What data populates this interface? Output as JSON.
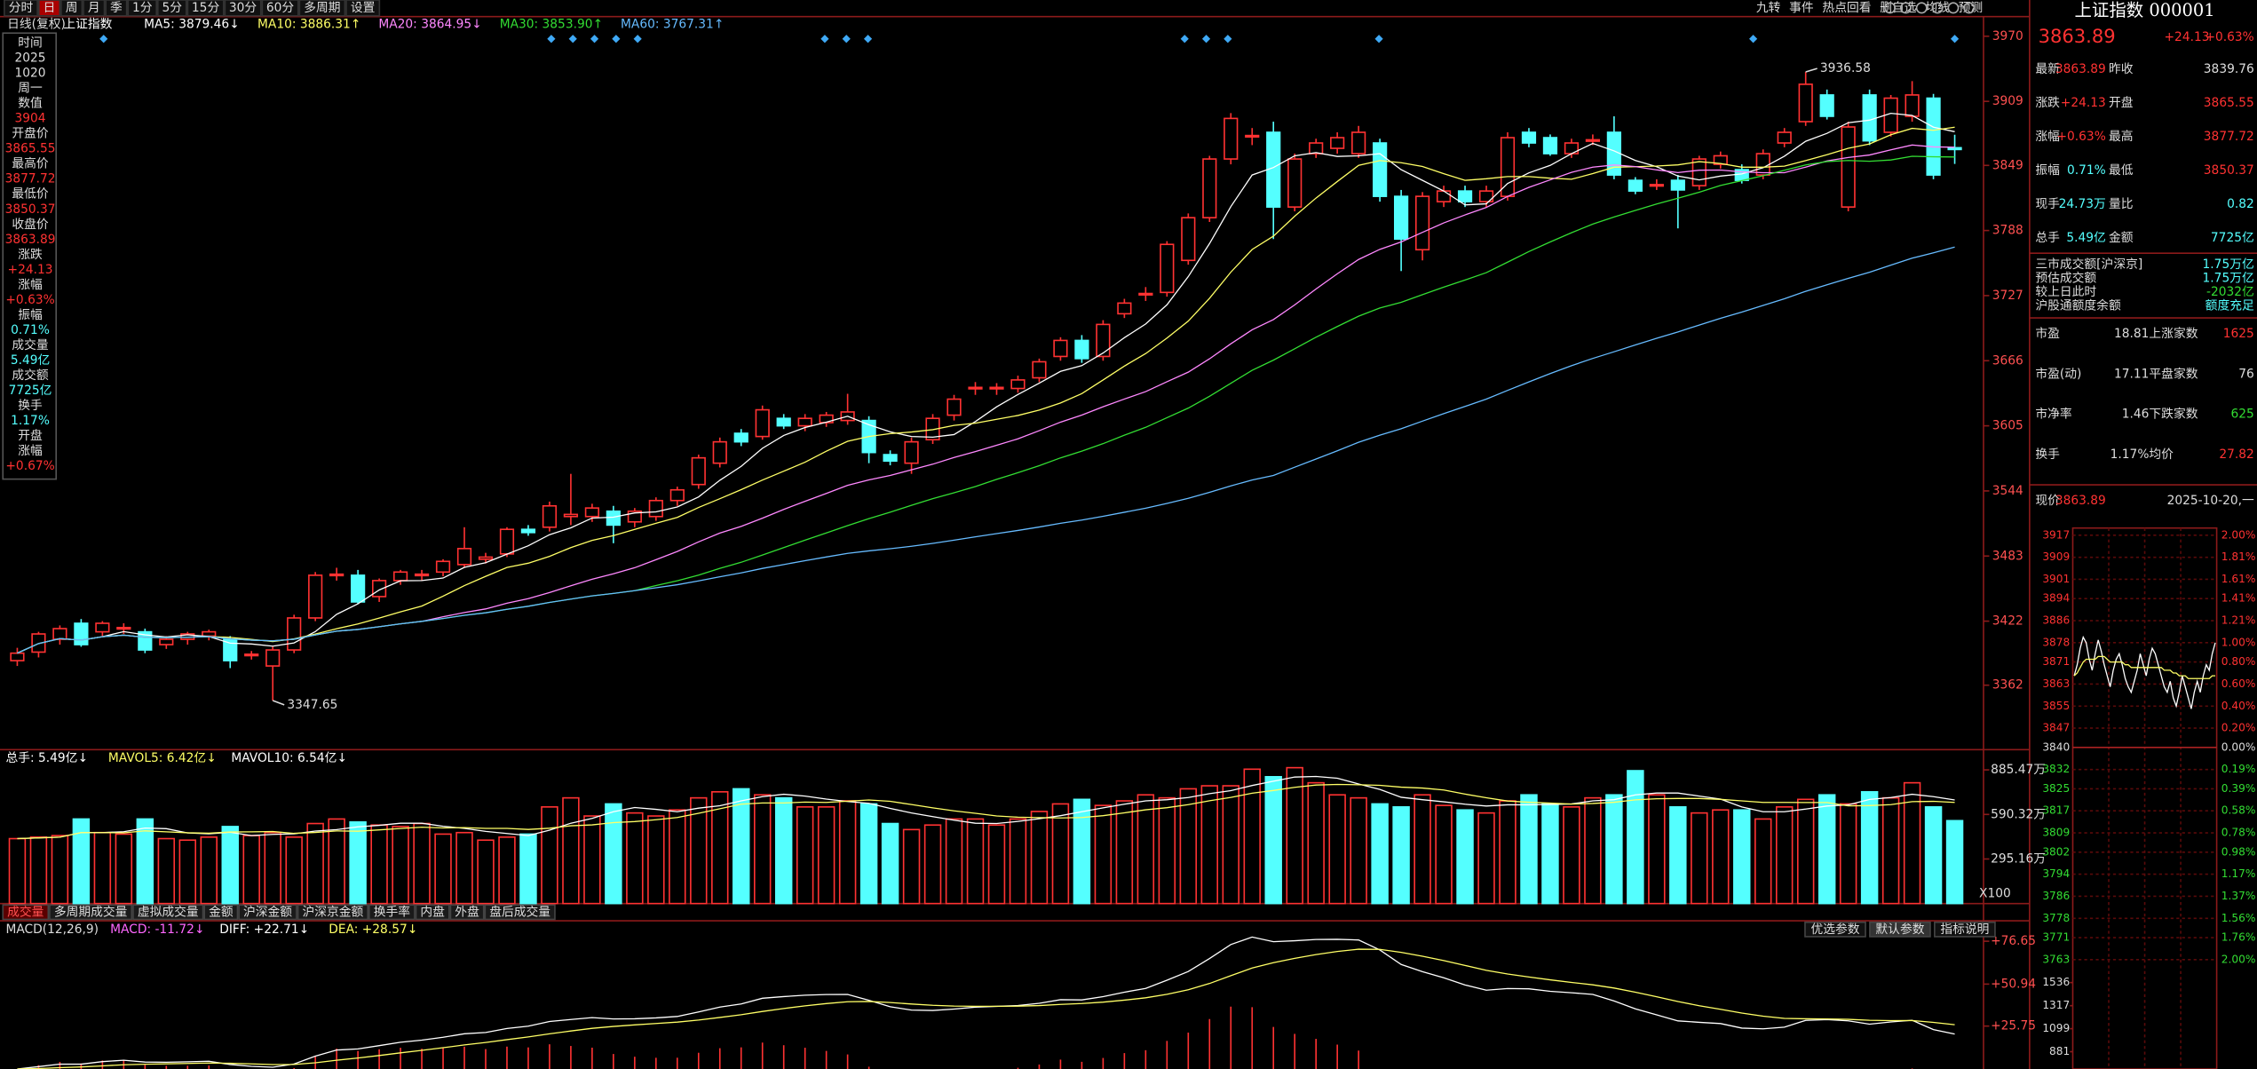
{
  "toolbar": {
    "left": [
      "分时",
      "日",
      "周",
      "月",
      "季",
      "1分",
      "5分",
      "15分",
      "30分",
      "60分",
      "多周期",
      "设置"
    ],
    "active": 1,
    "right": [
      "九转",
      "事件",
      "热点回看",
      "删自选",
      "均线",
      "预测"
    ]
  },
  "kline": {
    "label": "日线(复权)",
    "name": "上证指数",
    "ma": [
      {
        "period": 5,
        "text": "MA5: 3879.46↓",
        "color": "#ffffff"
      },
      {
        "period": 10,
        "text": "MA10: 3886.31↑",
        "color": "#ffff66"
      },
      {
        "period": 20,
        "text": "MA20: 3864.95↓",
        "color": "#ff88ff"
      },
      {
        "period": 30,
        "text": "MA30: 3853.90↑",
        "color": "#33dd33"
      },
      {
        "period": 60,
        "text": "MA60: 3767.31↑",
        "color": "#66bbff"
      }
    ],
    "ylim": [
      3303,
      3977
    ],
    "yticks": [
      3970,
      3909,
      3849,
      3788,
      3727,
      3666,
      3605,
      3544,
      3483,
      3422,
      3362
    ],
    "low": {
      "index": 12,
      "label": "3347.65"
    },
    "high": {
      "index": 84,
      "label": "3936.58"
    },
    "up_color": "#ff3232",
    "down_color": "#54ffff",
    "candles": [
      [
        3385,
        3397,
        3380,
        3392
      ],
      [
        3393,
        3412,
        3388,
        3410
      ],
      [
        3405,
        3418,
        3400,
        3415
      ],
      [
        3420,
        3424,
        3398,
        3400
      ],
      [
        3412,
        3422,
        3408,
        3420
      ],
      [
        3415,
        3420,
        3410,
        3416
      ],
      [
        3412,
        3415,
        3392,
        3395
      ],
      [
        3400,
        3408,
        3396,
        3405
      ],
      [
        3405,
        3412,
        3400,
        3410
      ],
      [
        3408,
        3414,
        3404,
        3412
      ],
      [
        3405,
        3408,
        3378,
        3385
      ],
      [
        3390,
        3394,
        3386,
        3391
      ],
      [
        3380,
        3398,
        3347.65,
        3395
      ],
      [
        3395,
        3428,
        3392,
        3425
      ],
      [
        3425,
        3468,
        3422,
        3465
      ],
      [
        3465,
        3472,
        3460,
        3466
      ],
      [
        3465,
        3470,
        3438,
        3440
      ],
      [
        3445,
        3462,
        3440,
        3460
      ],
      [
        3460,
        3470,
        3456,
        3468
      ],
      [
        3465,
        3470,
        3460,
        3466
      ],
      [
        3468,
        3480,
        3464,
        3478
      ],
      [
        3475,
        3510,
        3472,
        3490
      ],
      [
        3480,
        3486,
        3476,
        3482
      ],
      [
        3485,
        3510,
        3482,
        3508
      ],
      [
        3508,
        3512,
        3502,
        3505
      ],
      [
        3510,
        3534,
        3506,
        3530
      ],
      [
        3520,
        3560,
        3512,
        3522
      ],
      [
        3520,
        3532,
        3515,
        3528
      ],
      [
        3525,
        3530,
        3495,
        3512
      ],
      [
        3515,
        3528,
        3510,
        3525
      ],
      [
        3520,
        3538,
        3516,
        3535
      ],
      [
        3535,
        3548,
        3530,
        3545
      ],
      [
        3550,
        3578,
        3546,
        3575
      ],
      [
        3570,
        3594,
        3566,
        3590
      ],
      [
        3598,
        3602,
        3586,
        3590
      ],
      [
        3595,
        3624,
        3592,
        3620
      ],
      [
        3612,
        3616,
        3602,
        3605
      ],
      [
        3605,
        3616,
        3600,
        3612
      ],
      [
        3608,
        3618,
        3604,
        3615
      ],
      [
        3610,
        3635,
        3606,
        3618
      ],
      [
        3610,
        3614,
        3570,
        3580
      ],
      [
        3578,
        3582,
        3568,
        3572
      ],
      [
        3570,
        3594,
        3560,
        3590
      ],
      [
        3592,
        3616,
        3588,
        3612
      ],
      [
        3615,
        3634,
        3610,
        3630
      ],
      [
        3640,
        3646,
        3634,
        3641
      ],
      [
        3640,
        3645,
        3634,
        3641
      ],
      [
        3640,
        3652,
        3636,
        3648
      ],
      [
        3650,
        3668,
        3646,
        3665
      ],
      [
        3670,
        3688,
        3666,
        3685
      ],
      [
        3685,
        3690,
        3664,
        3668
      ],
      [
        3670,
        3704,
        3666,
        3700
      ],
      [
        3710,
        3724,
        3706,
        3720
      ],
      [
        3728,
        3735,
        3722,
        3729
      ],
      [
        3730,
        3778,
        3726,
        3775
      ],
      [
        3760,
        3804,
        3756,
        3800
      ],
      [
        3800,
        3858,
        3796,
        3855
      ],
      [
        3855,
        3898,
        3850,
        3893
      ],
      [
        3876,
        3884,
        3868,
        3877
      ],
      [
        3880,
        3890,
        3780,
        3810
      ],
      [
        3810,
        3860,
        3806,
        3855
      ],
      [
        3860,
        3874,
        3856,
        3870
      ],
      [
        3865,
        3880,
        3860,
        3875
      ],
      [
        3860,
        3886,
        3856,
        3880
      ],
      [
        3870,
        3874,
        3815,
        3820
      ],
      [
        3820,
        3826,
        3750,
        3780
      ],
      [
        3770,
        3824,
        3760,
        3820
      ],
      [
        3815,
        3830,
        3810,
        3825
      ],
      [
        3825,
        3830,
        3810,
        3815
      ],
      [
        3815,
        3830,
        3810,
        3825
      ],
      [
        3820,
        3880,
        3816,
        3875
      ],
      [
        3880,
        3884,
        3866,
        3870
      ],
      [
        3875,
        3878,
        3858,
        3860
      ],
      [
        3860,
        3874,
        3856,
        3870
      ],
      [
        3872,
        3878,
        3868,
        3873
      ],
      [
        3880,
        3895,
        3836,
        3840
      ],
      [
        3835,
        3838,
        3822,
        3825
      ],
      [
        3830,
        3836,
        3826,
        3831
      ],
      [
        3835,
        3840,
        3790,
        3826
      ],
      [
        3830,
        3858,
        3826,
        3855
      ],
      [
        3850,
        3862,
        3846,
        3858
      ],
      [
        3845,
        3850,
        3832,
        3835
      ],
      [
        3840,
        3864,
        3836,
        3860
      ],
      [
        3870,
        3884,
        3866,
        3880
      ],
      [
        3890,
        3936.58,
        3886,
        3925
      ],
      [
        3915,
        3920,
        3892,
        3895
      ],
      [
        3810,
        3890,
        3806,
        3885
      ],
      [
        3915,
        3920,
        3868,
        3872
      ],
      [
        3880,
        3915,
        3876,
        3912
      ],
      [
        3895,
        3928,
        3890,
        3915
      ],
      [
        3912,
        3916,
        3836,
        3840
      ],
      [
        3865.55,
        3877.72,
        3850.37,
        3863.89
      ]
    ]
  },
  "volume": {
    "legend": [
      "总手: 5.49亿↓",
      "MAVOL5: 6.42亿↓",
      "MAVOL10: 6.54亿↓"
    ],
    "legend_colors": [
      "#ffffff",
      "#ffff66",
      "#ffffff"
    ],
    "ma": [
      {
        "period": 5,
        "color": "#ffffff"
      },
      {
        "period": 10,
        "color": "#ffff66"
      }
    ],
    "ylim": [
      0,
      934
    ],
    "yticks": [
      {
        "value": 885.47,
        "label": "885.47万"
      },
      {
        "value": 590.32,
        "label": "590.32万"
      },
      {
        "value": 295.16,
        "label": "295.16万"
      }
    ],
    "unit": "X100",
    "values": [
      430,
      440,
      450,
      560,
      470,
      460,
      560,
      430,
      420,
      440,
      510,
      450,
      470,
      440,
      530,
      560,
      540,
      520,
      510,
      530,
      460,
      470,
      420,
      440,
      460,
      640,
      700,
      580,
      660,
      600,
      580,
      620,
      700,
      740,
      760,
      720,
      700,
      640,
      640,
      680,
      660,
      530,
      490,
      520,
      560,
      560,
      520,
      560,
      610,
      660,
      690,
      650,
      680,
      720,
      700,
      760,
      780,
      780,
      890,
      840,
      900,
      800,
      720,
      700,
      660,
      640,
      720,
      650,
      620,
      600,
      680,
      720,
      660,
      640,
      700,
      720,
      880,
      720,
      640,
      600,
      620,
      620,
      560,
      640,
      690,
      720,
      660,
      740,
      700,
      800,
      640,
      549
    ],
    "tabs": [
      "成交量",
      "多周期成交量",
      "虚拟成交量",
      "金额",
      "沪深金额",
      "沪深京金额",
      "换手率",
      "内盘",
      "外盘",
      "盘后成交量"
    ]
  },
  "macd": {
    "legend": [
      "MACD(12,26,9)",
      "MACD: -11.72↓",
      "DIFF: +22.71↓",
      "DEA: +28.57↓"
    ],
    "legend_colors": [
      "#dddddd",
      "#ff66ff",
      "#ffffff",
      "#ffff66"
    ],
    "params": [
      12,
      26,
      9
    ],
    "buttons": [
      "优选参数",
      "默认参数",
      "指标说明"
    ],
    "ylim": [
      0,
      82
    ],
    "yticks": [
      {
        "value": 76.65,
        "label": "+76.65"
      },
      {
        "value": 50.94,
        "label": "+50.94"
      },
      {
        "value": 25.75,
        "label": "+25.75"
      }
    ]
  },
  "info": [
    [
      "时间",
      "#ddd"
    ],
    [
      "2025",
      "#ddd"
    ],
    [
      "1020",
      "#ddd"
    ],
    [
      "周一",
      "#ddd"
    ],
    [
      "数值",
      "#ddd"
    ],
    [
      "3904",
      "#ff3232"
    ],
    [
      "开盘价",
      "#ddd"
    ],
    [
      "3865.55",
      "#ff3232"
    ],
    [
      "最高价",
      "#ddd"
    ],
    [
      "3877.72",
      "#ff3232"
    ],
    [
      "最低价",
      "#ddd"
    ],
    [
      "3850.37",
      "#ff3232"
    ],
    [
      "收盘价",
      "#ddd"
    ],
    [
      "3863.89",
      "#ff3232"
    ],
    [
      "涨跌",
      "#ddd"
    ],
    [
      "+24.13",
      "#ff3232"
    ],
    [
      "涨幅",
      "#ddd"
    ],
    [
      "+0.63%",
      "#ff3232"
    ],
    [
      "振幅",
      "#ddd"
    ],
    [
      "0.71%",
      "#54ffff"
    ],
    [
      "成交量",
      "#ddd"
    ],
    [
      "5.49亿",
      "#54ffff"
    ],
    [
      "成交额",
      "#ddd"
    ],
    [
      "7725亿",
      "#54ffff"
    ],
    [
      "换手",
      "#ddd"
    ],
    [
      "1.17%",
      "#54ffff"
    ],
    [
      "开盘",
      "#ddd"
    ],
    [
      "涨幅",
      "#ddd"
    ],
    [
      "+0.67%",
      "#ff3232"
    ]
  ],
  "quote": {
    "title": "上证指数 000001",
    "price": "3863.89",
    "change": "+24.13",
    "pct": "+0.63%",
    "rows": [
      [
        "最新",
        "3863.89",
        "昨收",
        "3839.76",
        "#ff3232",
        "#ddd"
      ],
      [
        "涨跌",
        "+24.13",
        "开盘",
        "3865.55",
        "#ff3232",
        "#ff3232"
      ],
      [
        "涨幅",
        "+0.63%",
        "最高",
        "3877.72",
        "#ff3232",
        "#ff3232"
      ],
      [
        "振幅",
        "0.71%",
        "最低",
        "3850.37",
        "#54ffff",
        "#ff3232"
      ],
      [
        "现手",
        "24.73万",
        "量比",
        "0.82",
        "#54ffff",
        "#54ffff"
      ],
      [
        "总手",
        "5.49亿",
        "金额",
        "7725亿",
        "#54ffff",
        "#54ffff"
      ]
    ],
    "market": [
      [
        "三市成交额[沪深京]",
        "1.75万亿",
        "#54ffff"
      ],
      [
        "预估成交额",
        "1.75万亿",
        "#54ffff"
      ],
      [
        "较上日此时",
        "-2032亿",
        "#33dd33"
      ],
      [
        "沪股通额度余额",
        "额度充足",
        "#54ffff"
      ]
    ],
    "stats": [
      [
        "市盈",
        "18.81",
        "上涨家数",
        "1625",
        "#ff3232"
      ],
      [
        "市盈(动)",
        "17.11",
        "平盘家数",
        "76",
        "#ddd"
      ],
      [
        "市净率",
        "1.46",
        "下跌家数",
        "625",
        "#33dd33"
      ],
      [
        "换手",
        "1.17%",
        "均价",
        "27.82",
        "#ff3232"
      ]
    ],
    "now_label": "现价",
    "now_price": "3863.89",
    "now_date": "2025-10-20,一"
  },
  "intraday": {
    "ylim": [
      3763,
      3917
    ],
    "price_ticks": [
      3917,
      3909,
      3901,
      3894,
      3886,
      3878,
      3871,
      3863,
      3855,
      3847,
      3840,
      3832,
      3825,
      3817,
      3809,
      3802,
      3794,
      3786,
      3778,
      3771,
      3763
    ],
    "pct_ticks": [
      {
        "value": 2.0,
        "label": "2.00%"
      },
      {
        "value": 1.81,
        "label": "1.81%"
      },
      {
        "value": 1.61,
        "label": "1.61%"
      },
      {
        "value": 1.41,
        "label": "1.41%"
      },
      {
        "value": 1.21,
        "label": "1.21%"
      },
      {
        "value": 1.0,
        "label": "1.00%"
      },
      {
        "value": 0.8,
        "label": "0.80%"
      },
      {
        "value": 0.6,
        "label": "0.60%"
      },
      {
        "value": 0.4,
        "label": "0.40%"
      },
      {
        "value": 0.2,
        "label": "0.20%"
      },
      {
        "value": 0,
        "label": "0.00%"
      },
      {
        "value": -0.19,
        "label": "0.19%"
      },
      {
        "value": -0.39,
        "label": "0.39%"
      },
      {
        "value": -0.58,
        "label": "0.58%"
      },
      {
        "value": -0.78,
        "label": "0.78%"
      },
      {
        "value": -0.98,
        "label": "0.98%"
      },
      {
        "value": -1.17,
        "label": "1.17%"
      },
      {
        "value": -1.37,
        "label": "1.37%"
      },
      {
        "value": -1.56,
        "label": "1.56%"
      },
      {
        "value": -1.76,
        "label": "1.76%"
      },
      {
        "value": -2.0,
        "label": "2.00%"
      }
    ],
    "vol_ylim": [
      717,
      1685
    ],
    "vol_ticks": [
      1536,
      1317,
      1099,
      881
    ],
    "price": [
      3866,
      3870,
      3876,
      3880,
      3878,
      3872,
      3868,
      3874,
      3879,
      3875,
      3870,
      3866,
      3862,
      3868,
      3872,
      3874,
      3870,
      3865,
      3862,
      3860,
      3864,
      3868,
      3874,
      3870,
      3866,
      3872,
      3876,
      3874,
      3870,
      3866,
      3862,
      3860,
      3864,
      3858,
      3855,
      3860,
      3866,
      3862,
      3858,
      3854,
      3860,
      3864,
      3860,
      3866,
      3870,
      3868,
      3874,
      3878
    ],
    "avg": [
      3866,
      3867,
      3869,
      3871,
      3872,
      3872,
      3872,
      3872,
      3873,
      3873,
      3873,
      3872,
      3871,
      3871,
      3871,
      3871,
      3871,
      3870,
      3870,
      3869,
      3869,
      3869,
      3869,
      3869,
      3869,
      3869,
      3869,
      3869,
      3869,
      3869,
      3868,
      3868,
      3868,
      3867,
      3867,
      3866,
      3866,
      3866,
      3865,
      3865,
      3865,
      3865,
      3865,
      3865,
      3865,
      3865,
      3866,
      3866
    ]
  }
}
